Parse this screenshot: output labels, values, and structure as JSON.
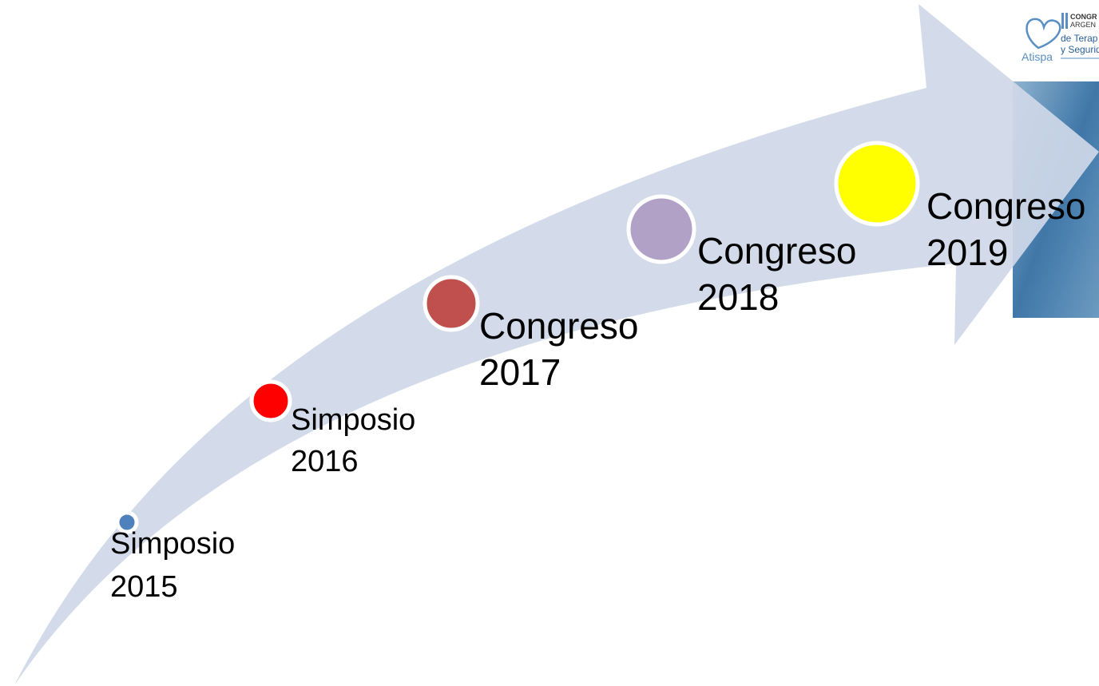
{
  "logo": {
    "line1": "CONGR",
    "line2": "ARGEN",
    "line3": "de Terap",
    "line4": "y Segurid",
    "brand": "Atispa"
  },
  "events": [
    {
      "name": "Simposio",
      "year": "2015",
      "color": "#4f81bd"
    },
    {
      "name": "Simposio",
      "year": "2016",
      "color": "#ff0000"
    },
    {
      "name": "Congreso",
      "year": "2017",
      "color": "#c0504d"
    },
    {
      "name": "Congreso",
      "year": "2018",
      "color": "#b2a1c7"
    },
    {
      "name": "Congreso",
      "year": "2019",
      "color": "#ffff00"
    }
  ]
}
